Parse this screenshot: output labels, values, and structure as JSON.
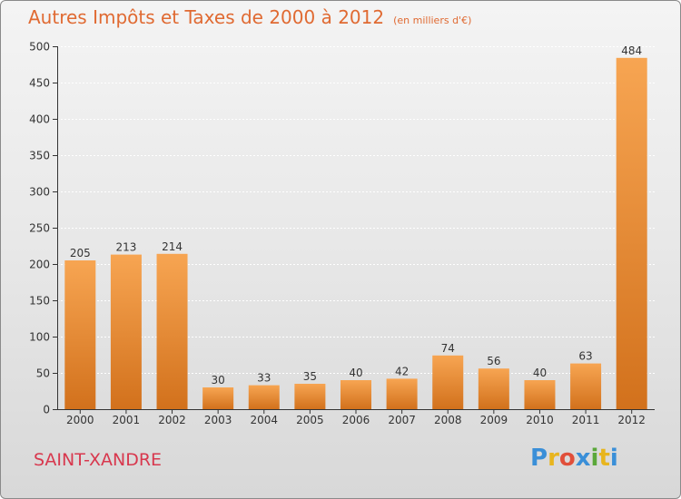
{
  "header": {
    "title": "Autres Impôts et Taxes de 2000 à 2012",
    "subtitle": "(en milliers d'€)"
  },
  "footer": {
    "commune": "SAINT-XANDRE",
    "logo_letters": [
      "P",
      "r",
      "o",
      "x",
      "i",
      "t",
      "i"
    ],
    "logo_colors": [
      "#3a8fd8",
      "#e8b51e",
      "#e14f3a",
      "#3a8fd8",
      "#5aa83a",
      "#e8b51e",
      "#3a8fd8"
    ]
  },
  "colors": {
    "bar_top": "#f7a552",
    "bar_bottom": "#d2711c",
    "title": "#e06a32",
    "commune": "#d8384e"
  },
  "chart_data": {
    "type": "bar",
    "categories": [
      "2000",
      "2001",
      "2002",
      "2003",
      "2004",
      "2005",
      "2006",
      "2007",
      "2008",
      "2009",
      "2010",
      "2011",
      "2012"
    ],
    "values": [
      205,
      213,
      214,
      30,
      33,
      35,
      40,
      42,
      74,
      56,
      40,
      63,
      484
    ],
    "data_labels": [
      "205",
      "213",
      "214",
      "30",
      "33",
      "35",
      "40",
      "42",
      "74",
      "56",
      "40",
      "63",
      "484"
    ],
    "y_ticks": [
      0,
      50,
      100,
      150,
      200,
      250,
      300,
      350,
      400,
      450,
      500
    ],
    "ylim": [
      0,
      500
    ],
    "grid": true,
    "legend": "none"
  }
}
